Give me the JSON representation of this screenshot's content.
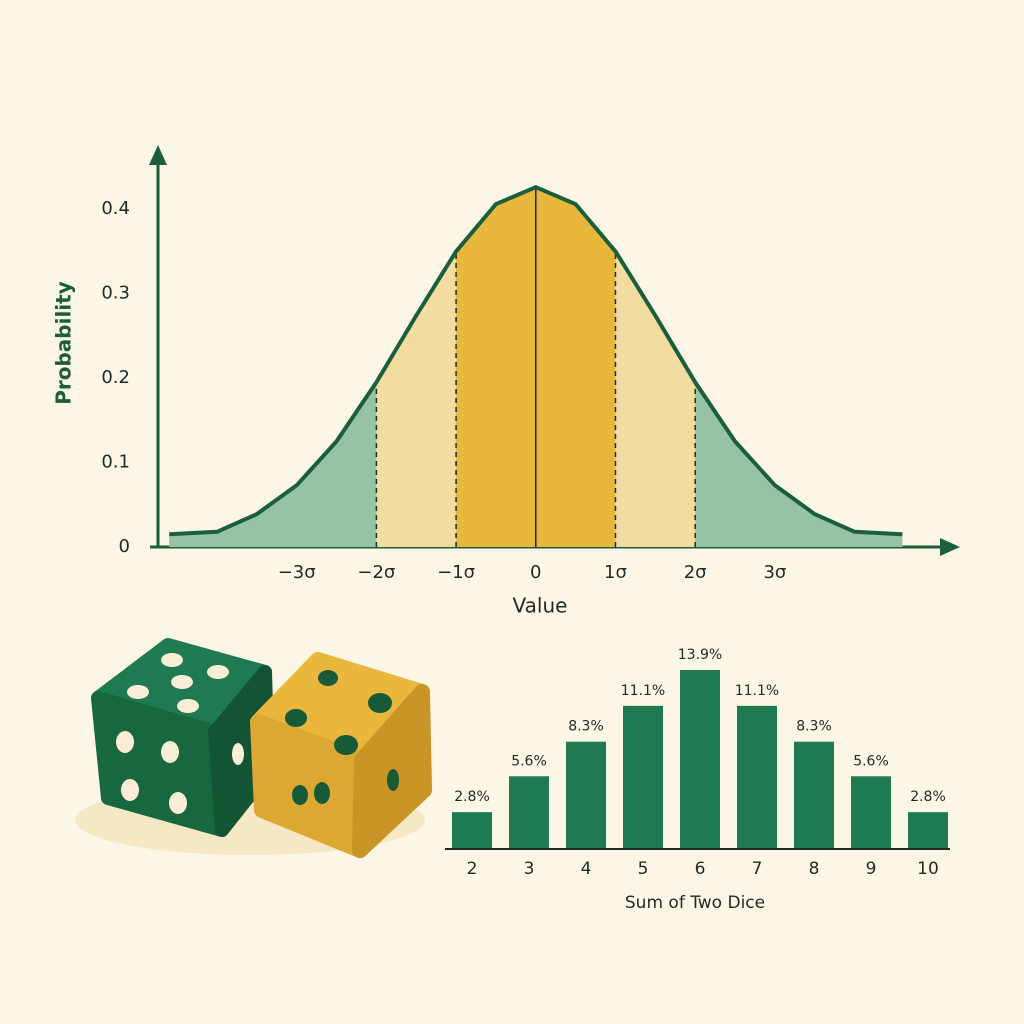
{
  "chart_data": [
    {
      "type": "area",
      "y_label": "Probability",
      "x_label": "Value",
      "x": [
        -4.6,
        -4,
        -3.5,
        -3,
        -2.5,
        -2,
        -1.5,
        -1,
        -0.5,
        0,
        0.5,
        1,
        1.5,
        2,
        2.5,
        3,
        3.5,
        4,
        4.6
      ],
      "values": [
        0.015,
        0.018,
        0.039,
        0.073,
        0.125,
        0.195,
        0.274,
        0.35,
        0.406,
        0.426,
        0.406,
        0.35,
        0.274,
        0.195,
        0.125,
        0.073,
        0.039,
        0.018,
        0.015
      ],
      "xlim": [
        -4.74,
        5.26
      ],
      "ylim": [
        0,
        0.47
      ],
      "xticks": [
        {
          "value": -3,
          "label": "−3σ"
        },
        {
          "value": -2,
          "label": "−2σ"
        },
        {
          "value": -1,
          "label": "−1σ"
        },
        0,
        {
          "value": 1,
          "label": "1σ"
        },
        {
          "value": 2,
          "label": "2σ"
        },
        {
          "value": 3,
          "label": "3σ"
        }
      ],
      "yticks": [
        0,
        0.1,
        0.2,
        0.3,
        0.4
      ],
      "line_color": "#1b5e3b",
      "fill_colors": [
        "#96c2a6",
        "#f3dca0",
        "#e8b73c"
      ]
    },
    {
      "type": "bar",
      "x_label": "Sum of Two Dice",
      "color": "#1f7a52",
      "categories": [
        "2",
        "3",
        "4",
        "5",
        "6",
        "7",
        "8",
        "9",
        "10"
      ],
      "values": [
        2.8,
        5.6,
        8.3,
        11.1,
        13.9,
        11.1,
        8.3,
        5.6,
        2.8
      ],
      "value_labels": [
        "2.8%",
        "5.6%",
        "8.3%",
        "11.1%",
        "13.9%",
        "11.1%",
        "8.3%",
        "5.6%",
        "2.8%"
      ]
    }
  ]
}
